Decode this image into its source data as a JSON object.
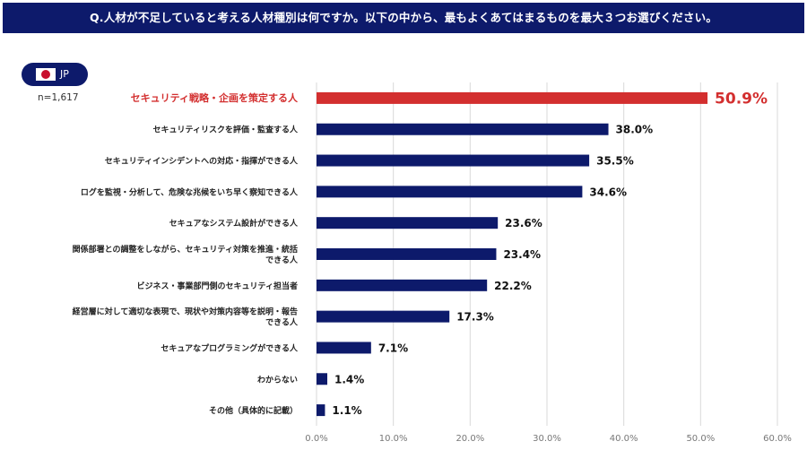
{
  "header": {
    "title": "Q.人材が不足していると考える人材種別は何ですか。以下の中から、最もよくあてはまるものを最大３つお選びください。"
  },
  "badge": {
    "label": "JP",
    "flag_icon": "japan-flag-icon"
  },
  "sample": {
    "label": "n=1,617"
  },
  "colors": {
    "bar": "#0d1a6b",
    "highlight": "#d32f2f",
    "grid": "#d9d9d9"
  },
  "chart_data": {
    "type": "bar",
    "orientation": "horizontal",
    "xlim": [
      0,
      60
    ],
    "ticks": [
      "0.0%",
      "10.0%",
      "20.0%",
      "30.0%",
      "40.0%",
      "50.0%",
      "60.0%"
    ],
    "highlight_index": 0,
    "categories": [
      [
        "セキュリティ戦略・企画を策定する人"
      ],
      [
        "セキュリティリスクを評価・監査する人"
      ],
      [
        "セキュリティインシデントへの対応・指揮ができる人"
      ],
      [
        "ログを監視・分析して、危険な兆候をいち早く察知できる人"
      ],
      [
        "セキュアなシステム設計ができる人"
      ],
      [
        "関係部署との調整をしながら、セキュリティ対策を推進・統括",
        "できる人"
      ],
      [
        "ビジネス・事業部門側のセキュリティ担当者"
      ],
      [
        "経営層に対して適切な表現で、現状や対策内容等を説明・報告",
        "できる人"
      ],
      [
        "セキュアなプログラミングができる人"
      ],
      [
        "わからない"
      ],
      [
        "その他（具体的に記載）"
      ]
    ],
    "values": [
      50.9,
      38.0,
      35.5,
      34.6,
      23.6,
      23.4,
      22.2,
      17.3,
      7.1,
      1.4,
      1.1
    ],
    "value_labels": [
      "50.9%",
      "38.0%",
      "35.5%",
      "34.6%",
      "23.6%",
      "23.4%",
      "22.2%",
      "17.3%",
      "7.1%",
      "1.4%",
      "1.1%"
    ]
  }
}
